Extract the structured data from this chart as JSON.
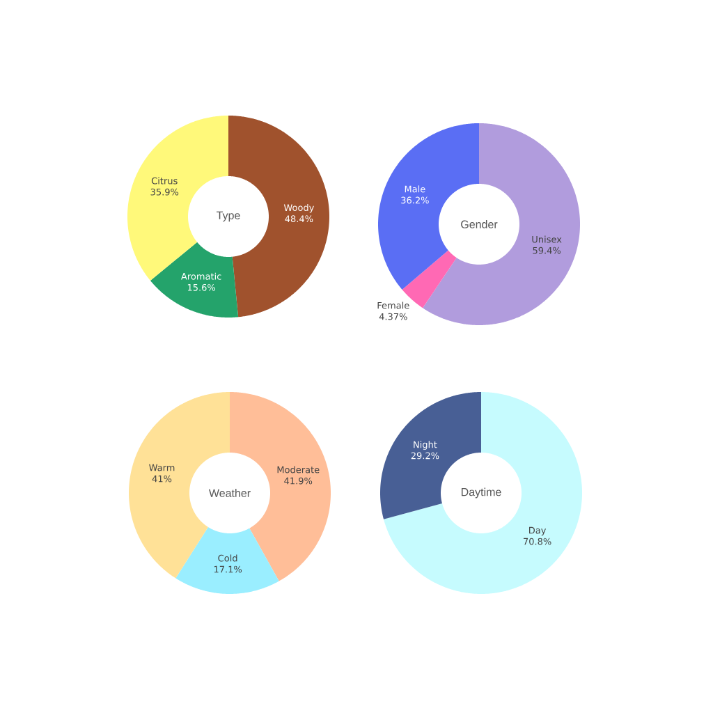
{
  "chart_data": [
    {
      "type": "donut",
      "title": "Type",
      "categories": [
        "Woody",
        "Aromatic",
        "Citrus"
      ],
      "values": [
        48.4,
        15.6,
        35.9
      ],
      "colors": [
        "#a0522d",
        "#24a36b",
        "#fff97a"
      ],
      "value_labels": [
        "48.4%",
        "15.6%",
        "35.9%"
      ]
    },
    {
      "type": "donut",
      "title": "Gender",
      "categories": [
        "Unisex",
        "Female",
        "Male"
      ],
      "values": [
        59.4,
        4.37,
        36.2
      ],
      "colors": [
        "#b19cdd",
        "#ff69b4",
        "#5a6ef4"
      ],
      "value_labels": [
        "59.4%",
        "4.37%",
        "36.2%"
      ]
    },
    {
      "type": "donut",
      "title": "Weather",
      "categories": [
        "Moderate",
        "Cold",
        "Warm"
      ],
      "values": [
        41.9,
        17.1,
        41
      ],
      "colors": [
        "#ffbe98",
        "#9aeeff",
        "#ffe197"
      ],
      "value_labels": [
        "41.9%",
        "17.1%",
        "41%"
      ]
    },
    {
      "type": "donut",
      "title": "Daytime",
      "categories": [
        "Day",
        "Night"
      ],
      "values": [
        70.8,
        29.2
      ],
      "colors": [
        "#c6fbfe",
        "#485f95"
      ],
      "value_labels": [
        "70.8%",
        "29.2%"
      ]
    }
  ]
}
